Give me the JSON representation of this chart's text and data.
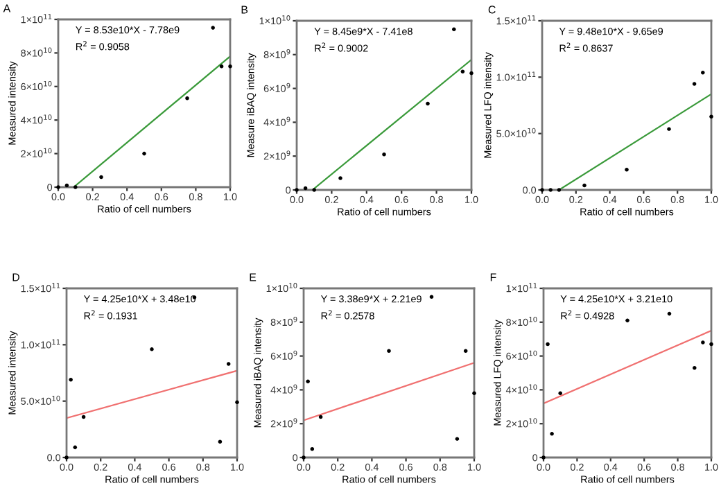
{
  "chart_data": [
    {
      "type": "scatter",
      "title": "A",
      "xlabel": "Ratio of cell numbers",
      "ylabel": "Measured intensity",
      "xlim": [
        0,
        1
      ],
      "ylim": [
        0,
        100000000000.0
      ],
      "xticks": [
        {
          "value": 0,
          "label": "0.0"
        },
        {
          "value": 0.2,
          "label": "0.2"
        },
        {
          "value": 0.4,
          "label": "0.4"
        },
        {
          "value": 0.6,
          "label": "0.6"
        },
        {
          "value": 0.8,
          "label": "0.8"
        },
        {
          "value": 1,
          "label": "1.0"
        }
      ],
      "yticks": [
        0,
        {
          "value": 20000000000.0,
          "label": "2×10$^{10}$"
        },
        {
          "value": 40000000000.0,
          "label": "4×10$^{10}$"
        },
        {
          "value": 60000000000.0,
          "label": "6×10$^{10}$"
        },
        {
          "value": 80000000000.0,
          "label": "8×10$^{10}$"
        },
        {
          "value": 100000000000.0,
          "label": "1×10$^{11}$"
        }
      ],
      "annotations": [
        "Y = 8.53e10*X - 7.78e9",
        "R$^{2}$ = 0.9058"
      ],
      "series": [
        {
          "marker": "circle",
          "color": "#000000",
          "x": [
            0,
            0.05,
            0.1,
            0.25,
            0.5,
            0.75,
            0.9,
            0.95,
            1.0
          ],
          "values": [
            0,
            1000000000.0,
            0,
            6000000000.0,
            20000000000.0,
            53000000000.0,
            95000000000.0,
            72000000000.0,
            72000000000.0
          ]
        },
        {
          "type": "line",
          "line_style": "solid",
          "color": "#3a9a3a",
          "x": [
            0.09,
            1.0
          ],
          "values": [
            0,
            78000000000.0
          ]
        }
      ]
    },
    {
      "type": "scatter",
      "title": "B",
      "xlabel": "Ratio of cell numbers",
      "ylabel": "Measure iBAQ intensity",
      "xlim": [
        0,
        1
      ],
      "ylim": [
        0,
        10000000000.0
      ],
      "xticks": [
        {
          "value": 0,
          "label": "0.0"
        },
        {
          "value": 0.2,
          "label": "0.2"
        },
        {
          "value": 0.4,
          "label": "0.4"
        },
        {
          "value": 0.6,
          "label": "0.6"
        },
        {
          "value": 0.8,
          "label": "0.8"
        },
        {
          "value": 1,
          "label": "1.0"
        }
      ],
      "yticks": [
        0,
        {
          "value": 2000000000.0,
          "label": "2×10$^{9}$"
        },
        {
          "value": 4000000000.0,
          "label": "4×10$^{9}$"
        },
        {
          "value": 6000000000.0,
          "label": "6×10$^{9}$"
        },
        {
          "value": 8000000000.0,
          "label": "8×10$^{9}$"
        },
        {
          "value": 10000000000.0,
          "label": "1×10$^{10}$"
        }
      ],
      "annotations": [
        "Y = 8.45e9*X - 7.41e8",
        "R$^{2}$ = 0.9002"
      ],
      "series": [
        {
          "marker": "circle",
          "color": "#000000",
          "x": [
            0,
            0.05,
            0.1,
            0.25,
            0.5,
            0.75,
            0.9,
            0.95,
            1.0
          ],
          "values": [
            0,
            100000000.0,
            0,
            700000000.0,
            2100000000.0,
            5100000000.0,
            9500000000.0,
            7000000000.0,
            6900000000.0
          ]
        },
        {
          "type": "line",
          "line_style": "solid",
          "color": "#3a9a3a",
          "x": [
            0.09,
            1.0
          ],
          "values": [
            0,
            7700000000.0
          ]
        }
      ]
    },
    {
      "type": "scatter",
      "title": "C",
      "xlabel": "Ratio of cell numbers",
      "ylabel": "Measured LFQ intensity",
      "xlim": [
        0,
        1
      ],
      "ylim": [
        0,
        150000000000.0
      ],
      "xticks": [
        {
          "value": 0,
          "label": "0.0"
        },
        {
          "value": 0.2,
          "label": "0.2"
        },
        {
          "value": 0.4,
          "label": "0.4"
        },
        {
          "value": 0.6,
          "label": "0.6"
        },
        {
          "value": 0.8,
          "label": "0.8"
        },
        {
          "value": 1,
          "label": "1.0"
        }
      ],
      "yticks": [
        {
          "value": 0,
          "label": "0.0"
        },
        {
          "value": 50000000000.0,
          "label": "5.0×10$^{10}$"
        },
        {
          "value": 100000000000.0,
          "label": "1.0×10$^{11}$"
        },
        {
          "value": 150000000000.0,
          "label": "1.5×10$^{11}$"
        }
      ],
      "annotations": [
        "Y = 9.48e10*X - 9.65e9",
        "R$^{2}$ = 0.8637"
      ],
      "series": [
        {
          "marker": "circle",
          "color": "#000000",
          "x": [
            0,
            0.05,
            0.1,
            0.25,
            0.5,
            0.75,
            0.9,
            0.95,
            1.0
          ],
          "values": [
            0,
            0,
            0,
            4000000000.0,
            18000000000.0,
            54000000000.0,
            94000000000.0,
            104000000000.0,
            65000000000.0
          ]
        },
        {
          "type": "line",
          "line_style": "solid",
          "color": "#3a9a3a",
          "x": [
            0.1,
            1.0
          ],
          "values": [
            0,
            85000000000.0
          ]
        }
      ]
    },
    {
      "type": "scatter",
      "title": "D",
      "xlabel": "Ratio of cell numbers",
      "ylabel": "Measured intensity",
      "xlim": [
        0,
        1
      ],
      "ylim": [
        0,
        150000000000.0
      ],
      "xticks": [
        {
          "value": 0,
          "label": "0.0"
        },
        {
          "value": 0.2,
          "label": "0.2"
        },
        {
          "value": 0.4,
          "label": "0.4"
        },
        {
          "value": 0.6,
          "label": "0.6"
        },
        {
          "value": 0.8,
          "label": "0.8"
        },
        {
          "value": 1,
          "label": "1.0"
        }
      ],
      "yticks": [
        {
          "value": 0,
          "label": "0.0"
        },
        {
          "value": 50000000000.0,
          "label": "5.0×10$^{10}$"
        },
        {
          "value": 100000000000.0,
          "label": "1.0×10$^{11}$"
        },
        {
          "value": 150000000000.0,
          "label": "1.5×10$^{11}$"
        }
      ],
      "annotations": [
        "Y = 4.25e10*X + 3.48e10",
        "R$^{2}$ = 0.1931"
      ],
      "series": [
        {
          "marker": "circle",
          "color": "#000000",
          "x": [
            0,
            0.025,
            0.05,
            0.1,
            0.5,
            0.75,
            0.9,
            0.95,
            1.0
          ],
          "values": [
            0,
            69000000000.0,
            9000000000.0,
            36000000000.0,
            96000000000.0,
            142000000000.0,
            14000000000.0,
            83000000000.0,
            49000000000.0
          ]
        },
        {
          "type": "line",
          "line_style": "solid",
          "color": "#f07070",
          "x": [
            0,
            1.0
          ],
          "values": [
            35000000000.0,
            77000000000.0
          ]
        }
      ]
    },
    {
      "type": "scatter",
      "title": "E",
      "xlabel": "Ratio of cell numbers",
      "ylabel": "Measured iBAQ intensity",
      "xlim": [
        0,
        1
      ],
      "ylim": [
        0,
        10000000000.0
      ],
      "xticks": [
        {
          "value": 0,
          "label": "0.0"
        },
        {
          "value": 0.2,
          "label": "0.2"
        },
        {
          "value": 0.4,
          "label": "0.4"
        },
        {
          "value": 0.6,
          "label": "0.6"
        },
        {
          "value": 0.8,
          "label": "0.8"
        },
        {
          "value": 1,
          "label": "1.0"
        }
      ],
      "yticks": [
        0,
        {
          "value": 2000000000.0,
          "label": "2×10$^{9}$"
        },
        {
          "value": 4000000000.0,
          "label": "4×10$^{9}$"
        },
        {
          "value": 6000000000.0,
          "label": "6×10$^{9}$"
        },
        {
          "value": 8000000000.0,
          "label": "8×10$^{9}$"
        },
        {
          "value": 10000000000.0,
          "label": "1×10$^{10}$"
        }
      ],
      "annotations": [
        "Y = 3.38e9*X + 2.21e9",
        "R$^{2}$ = 0.2578"
      ],
      "series": [
        {
          "marker": "circle",
          "color": "#000000",
          "x": [
            0,
            0.025,
            0.05,
            0.1,
            0.5,
            0.75,
            0.9,
            0.95,
            1.0
          ],
          "values": [
            0,
            4500000000.0,
            500000000.0,
            2400000000.0,
            6300000000.0,
            9500000000.0,
            1100000000.0,
            6300000000.0,
            3800000000.0
          ]
        },
        {
          "type": "line",
          "line_style": "solid",
          "color": "#f07070",
          "x": [
            0,
            1.0
          ],
          "values": [
            2200000000.0,
            5600000000.0
          ]
        }
      ]
    },
    {
      "type": "scatter",
      "title": "F",
      "xlabel": "Ratio of cell numbers",
      "ylabel": "Measured LFQ intensity",
      "xlim": [
        0,
        1
      ],
      "ylim": [
        0,
        100000000000.0
      ],
      "xticks": [
        {
          "value": 0,
          "label": "0.0"
        },
        {
          "value": 0.2,
          "label": "0.2"
        },
        {
          "value": 0.4,
          "label": "0.4"
        },
        {
          "value": 0.6,
          "label": "0.6"
        },
        {
          "value": 0.8,
          "label": "0.8"
        },
        {
          "value": 1,
          "label": "1.0"
        }
      ],
      "yticks": [
        0,
        {
          "value": 20000000000.0,
          "label": "2×10$^{10}$"
        },
        {
          "value": 40000000000.0,
          "label": "4×10$^{10}$"
        },
        {
          "value": 60000000000.0,
          "label": "6×10$^{10}$"
        },
        {
          "value": 80000000000.0,
          "label": "8×10$^{10}$"
        },
        {
          "value": 100000000000.0,
          "label": "1×10$^{11}$"
        }
      ],
      "annotations": [
        "Y = 4.25e10*X + 3.21e10",
        "R$^{2}$ = 0.4928"
      ],
      "series": [
        {
          "marker": "circle",
          "color": "#000000",
          "x": [
            0,
            0.025,
            0.05,
            0.1,
            0.5,
            0.75,
            0.9,
            0.95,
            1.0
          ],
          "values": [
            0,
            67000000000.0,
            14000000000.0,
            38000000000.0,
            81000000000.0,
            85000000000.0,
            53000000000.0,
            68000000000.0,
            67000000000.0
          ]
        },
        {
          "type": "line",
          "line_style": "solid",
          "color": "#f07070",
          "x": [
            0,
            1.0
          ],
          "values": [
            32000000000.0,
            75000000000.0
          ]
        }
      ]
    }
  ]
}
